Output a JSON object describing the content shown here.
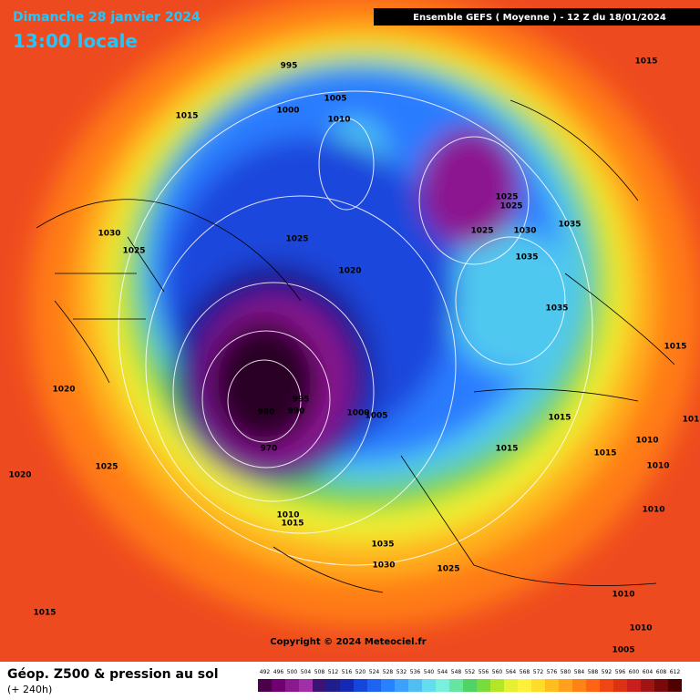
{
  "header": {
    "date": "Dimanche 28 janvier 2024",
    "time": "13:00 locale",
    "model": "Ensemble GEFS  ( Moyenne )  -  12 Z du 18/01/2024"
  },
  "map": {
    "pressure_labels": [
      995,
      1005,
      1000,
      1010,
      1015,
      1015,
      1030,
      1025,
      1025,
      1020,
      1025,
      1025,
      1025,
      1030,
      1035,
      1035,
      1035,
      1015,
      1020,
      995,
      990,
      980,
      970,
      1000,
      1005,
      1015,
      1015,
      1015,
      1010,
      1010,
      1020,
      1025,
      1010,
      1015,
      1010,
      1035,
      1030,
      1025,
      1010,
      1015,
      1010,
      1005,
      101
    ],
    "copyright": "Copyright © 2024 Meteociel.fr"
  },
  "footer": {
    "title": "Géop. Z500 & pression au sol",
    "lead": "(+ 240h)",
    "scale": {
      "values": [
        492,
        496,
        500,
        504,
        508,
        512,
        516,
        520,
        524,
        528,
        532,
        536,
        540,
        544,
        548,
        552,
        556,
        560,
        564,
        568,
        572,
        576,
        580,
        584,
        588,
        592,
        596,
        600,
        604,
        608,
        612
      ],
      "colors": [
        "#4b0049",
        "#6e0070",
        "#8c1890",
        "#a030a8",
        "#3c1478",
        "#1e1e8c",
        "#1428b4",
        "#1446dc",
        "#1e64f0",
        "#2882ff",
        "#3ca0ff",
        "#50bef0",
        "#64dcf0",
        "#78f0dc",
        "#64e6a0",
        "#50d264",
        "#78dc3c",
        "#b4e628",
        "#e6f032",
        "#fff03c",
        "#ffdc28",
        "#ffbe1e",
        "#ffa01e",
        "#ff8214",
        "#ff6414",
        "#f04614",
        "#dc3214",
        "#c81e1e",
        "#a01414",
        "#780a0a",
        "#500000"
      ]
    }
  }
}
